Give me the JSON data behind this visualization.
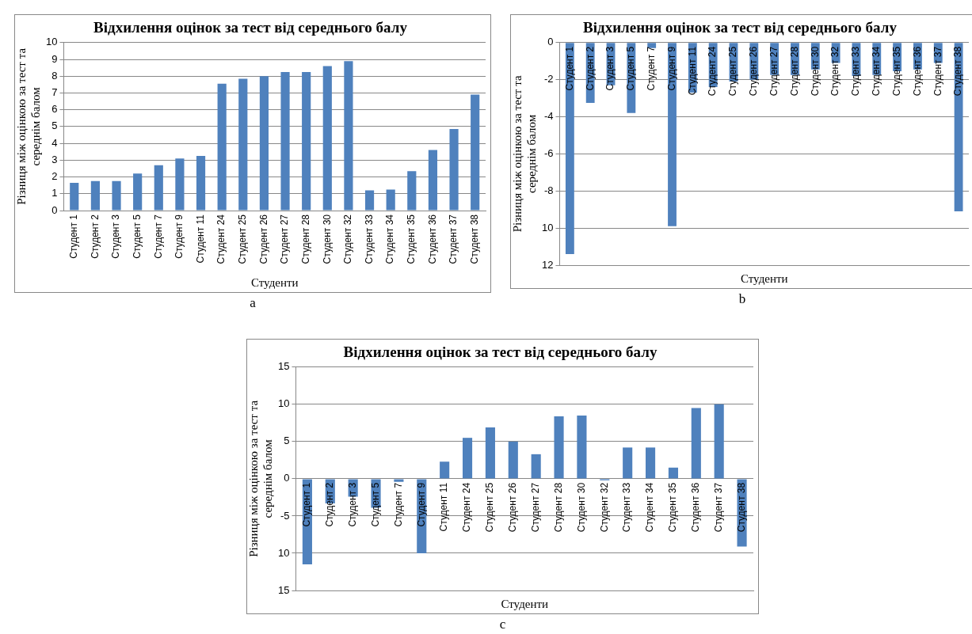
{
  "chart_data": [
    {
      "type": "bar",
      "title": "Відхилення оцінок за тест від середнього балу",
      "xlabel": "Студенти",
      "ylabel": "Різниця між оцінкою за тест та середнім балом",
      "annotations": [
        "a"
      ],
      "categories": [
        "Студент 1",
        "Студент 2",
        "Студент 3",
        "Студент 5",
        "Студент 7",
        "Студент 9",
        "Студент 11",
        "Студент 24",
        "Студент 25",
        "Студент 26",
        "Студент 27",
        "Студент 28",
        "Студент 30",
        "Студент 32",
        "Студент 33",
        "Студент 34",
        "Студент 35",
        "Студент 36",
        "Студент 37",
        "Студент 38"
      ],
      "values": [
        1.65,
        1.75,
        1.75,
        2.2,
        2.7,
        3.1,
        3.25,
        7.55,
        7.85,
        8,
        8.25,
        8.25,
        8.6,
        8.9,
        1.2,
        1.25,
        2.35,
        3.6,
        4.85,
        6.9
      ],
      "color": "#4f81bd",
      "ylim": [
        0,
        10
      ],
      "yticks": [
        0,
        1,
        2,
        3,
        4,
        5,
        6,
        7,
        8,
        9,
        10
      ],
      "grid": "y"
    },
    {
      "type": "bar",
      "title": "Відхилення оцінок за тест від середнього балу",
      "xlabel": "Студенти",
      "ylabel": "Різниця між оцінкою за тест та середнім балом",
      "annotations": [
        "b"
      ],
      "categories": [
        "Студент 1",
        "Студент 2",
        "Студент 3",
        "Студент 5",
        "Студент 7",
        "Студент 9",
        "Студент 11",
        "Студент 24",
        "Студент 25",
        "Студент 26",
        "Студент 27",
        "Студент 28",
        "Студент 30",
        "Студент 32",
        "Студент 33",
        "Студент 34",
        "Студент 35",
        "Студент 36",
        "Студент 37",
        "Студент 38"
      ],
      "values": [
        -11.4,
        -3.25,
        -2.3,
        -3.8,
        -0.3,
        -9.9,
        -2.7,
        -2.4,
        -2.1,
        -2.0,
        -1.75,
        -1.75,
        -1.45,
        -1.1,
        -1.8,
        -1.75,
        -1.55,
        -1.45,
        -1.1,
        -9.1
      ],
      "color": "#4f81bd",
      "ylim": [
        -12,
        0
      ],
      "yticks": [
        {
          "value": -12,
          "label": "12"
        },
        {
          "value": -10,
          "label": "10"
        },
        -8,
        -6,
        -4,
        -2,
        0
      ],
      "grid": "y"
    },
    {
      "type": "bar",
      "title": "Відхилення оцінок за тест від середнього балу",
      "xlabel": "Студенти",
      "ylabel": "Різниця між оцінкою за тест та середнім балом",
      "annotations": [
        "c"
      ],
      "categories": [
        "Студент 1",
        "Студент 2",
        "Студент 3",
        "Студент 5",
        "Студент 7",
        "Студент 9",
        "Студент 11",
        "Студент 24",
        "Студент 25",
        "Студент 26",
        "Студент 27",
        "Студент 28",
        "Студент 30",
        "Студент 32",
        "Студент 33",
        "Студент 34",
        "Студент 35",
        "Студент 36",
        "Студент 37",
        "Студент 38"
      ],
      "values": [
        -11.5,
        -3.3,
        -2.4,
        -3.9,
        -0.4,
        -10,
        2.3,
        5.5,
        6.9,
        5,
        3.3,
        8.4,
        8.5,
        -0.2,
        4.2,
        4.2,
        1.5,
        9.5,
        10,
        -9.1
      ],
      "color": "#4f81bd",
      "ylim": [
        -15,
        15
      ],
      "yticks": [
        {
          "value": -15,
          "label": "15"
        },
        {
          "value": -10,
          "label": "10"
        },
        -5,
        0,
        5,
        10,
        15
      ],
      "grid": "y"
    }
  ]
}
